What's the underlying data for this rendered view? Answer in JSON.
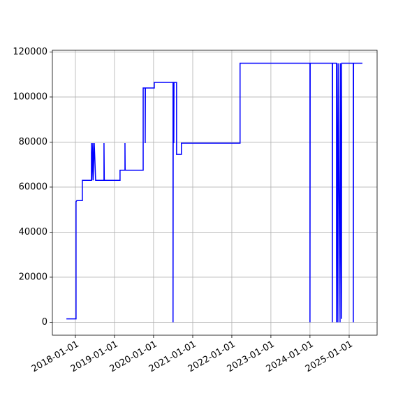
{
  "chart_data": {
    "type": "line",
    "x": [
      "2017-10-09",
      "2018-01-07",
      "2018-01-07",
      "2018-01-14",
      "2018-03-07",
      "2018-03-07",
      "2018-05-31",
      "2018-05-31",
      "2018-06-03",
      "2018-06-13",
      "2018-06-16",
      "2018-06-26",
      "2018-07-09",
      "2018-09-25",
      "2018-09-25",
      "2018-09-28",
      "2019-02-22",
      "2019-02-22",
      "2019-04-09",
      "2019-04-09",
      "2019-04-11",
      "2019-09-26",
      "2019-09-26",
      "2019-10-15",
      "2019-10-15",
      "2019-10-17",
      "2020-01-08",
      "2020-01-08",
      "2020-07-01",
      "2020-07-01",
      "2020-07-03",
      "2020-07-08",
      "2020-07-10",
      "2020-08-03",
      "2020-08-03",
      "2020-09-17",
      "2020-09-17",
      "2022-03-19",
      "2022-03-19",
      "2024-01-01",
      "2024-01-01",
      "2024-01-03",
      "2024-07-28",
      "2024-07-28",
      "2024-07-30",
      "2024-09-05",
      "2024-09-05",
      "2024-09-07",
      "2024-09-18",
      "2024-09-20",
      "2024-10-08",
      "2024-10-10",
      "2024-10-21",
      "2024-10-23",
      "2025-02-09",
      "2025-02-09",
      "2025-02-11",
      "2025-05-05"
    ],
    "values": [
      1500,
      1500,
      53500,
      54000,
      54000,
      63000,
      63000,
      79500,
      63000,
      79500,
      63000,
      79500,
      63000,
      63000,
      79500,
      63000,
      63000,
      67500,
      67500,
      79500,
      67500,
      67500,
      104000,
      104000,
      79500,
      104000,
      104000,
      106500,
      106500,
      0,
      106500,
      79500,
      106500,
      106500,
      74500,
      74500,
      79500,
      79500,
      115000,
      115000,
      0,
      115000,
      115000,
      0,
      115000,
      115000,
      0,
      115000,
      0,
      115000,
      0,
      115000,
      1500,
      115000,
      115000,
      0,
      115000,
      115000
    ],
    "color": "blue",
    "xlim": [
      "2017-05-31",
      "2025-09-19"
    ],
    "xticks": [
      "2018-01-01",
      "2019-01-01",
      "2020-01-01",
      "2021-01-01",
      "2022-01-01",
      "2023-01-01",
      "2024-01-01",
      "2025-01-01"
    ],
    "ylim": [
      -5750,
      120750
    ],
    "yticks": [
      0,
      20000,
      40000,
      60000,
      80000,
      100000,
      120000
    ],
    "grid": true
  }
}
